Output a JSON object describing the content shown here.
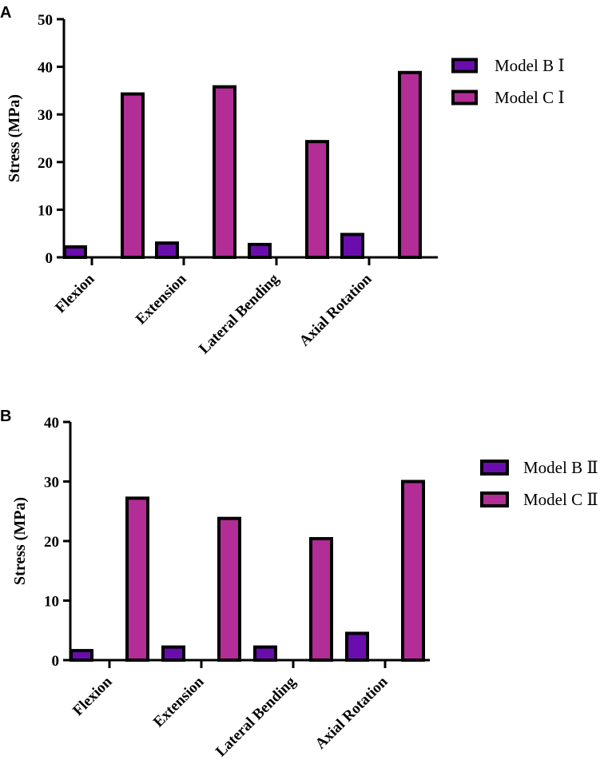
{
  "chart_data": [
    {
      "type": "bar",
      "panel_label": "A",
      "categories": [
        "Flexion",
        "Extension",
        "Lateral Bending",
        "Axial Rotation"
      ],
      "series": [
        {
          "name": "Model B Ⅰ",
          "values": [
            2.2,
            3.0,
            2.7,
            4.8
          ],
          "color": "#6a0dad"
        },
        {
          "name": "Model C Ⅰ",
          "values": [
            34.3,
            35.8,
            24.3,
            38.8
          ],
          "color": "#b22d96"
        }
      ],
      "ylabel": "Stress (MPa)",
      "xlabel": "",
      "ylim": [
        0,
        50
      ],
      "yticks": [
        0,
        10,
        20,
        30,
        40,
        50
      ],
      "legend_position": "right"
    },
    {
      "type": "bar",
      "panel_label": "B",
      "categories": [
        "Flexion",
        "Extension",
        "Lateral Bending",
        "Axial Rotation"
      ],
      "series": [
        {
          "name": "Model B Ⅱ",
          "values": [
            1.6,
            2.2,
            2.2,
            4.5
          ],
          "color": "#6a0dad"
        },
        {
          "name": "Model C Ⅱ",
          "values": [
            27.2,
            23.8,
            20.4,
            30.0
          ],
          "color": "#b22d96"
        }
      ],
      "ylabel": "Stress (MPa)",
      "xlabel": "",
      "ylim": [
        0,
        40
      ],
      "yticks": [
        0,
        10,
        20,
        30,
        40
      ],
      "legend_position": "right"
    }
  ]
}
